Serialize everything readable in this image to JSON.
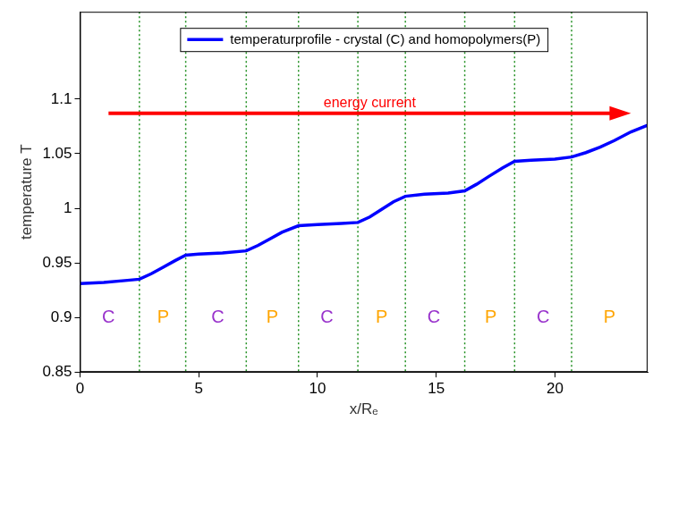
{
  "chart_data": {
    "type": "line",
    "x_label": "x/Rₑ",
    "y_label": "temperature T",
    "xlim": [
      0,
      23.9
    ],
    "xticks": [
      0,
      5,
      10,
      15,
      20
    ],
    "ylim": [
      0.85,
      1.18
    ],
    "yticks": [
      0.85,
      0.9,
      0.95,
      1,
      1.05,
      1.1
    ],
    "legend": "top",
    "series": [
      {
        "name": "temperaturprofile - crystal (C) and homopolymers(P)",
        "color": "#0000ff",
        "x": [
          0,
          1,
          2,
          2.5,
          3.0,
          3.5,
          4.0,
          4.45,
          5,
          6,
          7.0,
          7.5,
          8,
          8.5,
          9.2,
          10,
          11,
          11.7,
          12.2,
          12.7,
          13.2,
          13.7,
          14.5,
          15.5,
          16.2,
          16.7,
          17.2,
          17.8,
          18.3,
          19,
          20,
          20.7,
          21.3,
          21.9,
          22.5,
          23.2,
          23.9
        ],
        "values": [
          0.931,
          0.932,
          0.934,
          0.935,
          0.94,
          0.946,
          0.952,
          0.957,
          0.958,
          0.959,
          0.961,
          0.966,
          0.972,
          0.978,
          0.984,
          0.985,
          0.986,
          0.987,
          0.992,
          0.999,
          1.006,
          1.011,
          1.013,
          1.014,
          1.016,
          1.022,
          1.029,
          1.037,
          1.043,
          1.044,
          1.045,
          1.047,
          1.051,
          1.056,
          1.062,
          1.07,
          1.076
        ]
      }
    ],
    "boundaries": {
      "x": [
        2.5,
        4.45,
        7.0,
        9.2,
        11.7,
        13.7,
        16.2,
        18.3,
        20.7,
        23.9
      ],
      "color": "#1f8f1f",
      "line_style": "dotted"
    },
    "regions": [
      {
        "label": "C",
        "x": 1.2,
        "y": 0.9,
        "color": "#9933cc"
      },
      {
        "label": "P",
        "x": 3.5,
        "y": 0.9,
        "color": "#ffa500"
      },
      {
        "label": "C",
        "x": 5.8,
        "y": 0.9,
        "color": "#9933cc"
      },
      {
        "label": "P",
        "x": 8.1,
        "y": 0.9,
        "color": "#ffa500"
      },
      {
        "label": "C",
        "x": 10.4,
        "y": 0.9,
        "color": "#9933cc"
      },
      {
        "label": "P",
        "x": 12.7,
        "y": 0.9,
        "color": "#ffa500"
      },
      {
        "label": "C",
        "x": 14.9,
        "y": 0.9,
        "color": "#9933cc"
      },
      {
        "label": "P",
        "x": 17.3,
        "y": 0.9,
        "color": "#ffa500"
      },
      {
        "label": "C",
        "x": 19.5,
        "y": 0.9,
        "color": "#9933cc"
      },
      {
        "label": "P",
        "x": 22.3,
        "y": 0.9,
        "color": "#ffa500"
      }
    ],
    "annotations": [
      {
        "text": "energy current",
        "x_start": 1.2,
        "x_end": 23.2,
        "y": 1.087,
        "color": "#ff0000"
      }
    ]
  }
}
